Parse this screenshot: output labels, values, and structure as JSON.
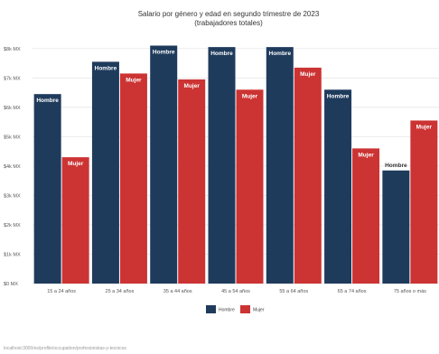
{
  "chart_data": {
    "type": "bar",
    "title": "Salario por género y edad en segundo trimestre de 2023",
    "subtitle": "(trabajadores totales)",
    "categories": [
      "15 a 24 años",
      "25 a 34 años",
      "35 a 44 años",
      "45 a 54 años",
      "55 a 64 años",
      "65 a 74 años",
      "75 años o más"
    ],
    "series": [
      {
        "name": "Hombre",
        "label": "Hombre",
        "color": "#1f3b5c",
        "values": [
          6.45,
          7.55,
          8.1,
          8.05,
          8.05,
          6.6,
          3.85
        ]
      },
      {
        "name": "Mujer",
        "label": "Mujer",
        "color": "#cc3333",
        "values": [
          4.3,
          7.15,
          6.95,
          6.6,
          7.35,
          4.6,
          5.55
        ]
      }
    ],
    "yticks": [
      "$0 MX",
      "$1k MX",
      "$2k MX",
      "$3k MX",
      "$4k MX",
      "$5k MX",
      "$6k MX",
      "$7k MX",
      "$8k MX"
    ],
    "ylim": [
      0,
      8.3
    ],
    "yunit": "miles de pesos MX",
    "grid": true,
    "legend_position": "bottom-center"
  },
  "footer": {
    "url": "localhost:3000/es/profile/occupation/profesionistas-y-tecnicos"
  }
}
